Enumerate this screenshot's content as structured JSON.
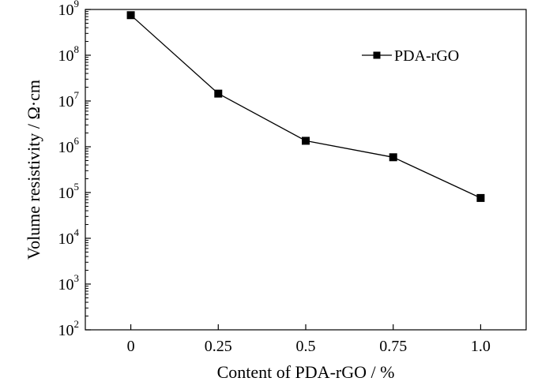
{
  "chart_data": {
    "type": "line",
    "xlabel": "Content of PDA-rGO  / %",
    "ylabel": "Volume  resistivity / Ω·cm",
    "x_tick_labels": [
      "0",
      "0.25",
      "0.5",
      "0.75",
      "1.0"
    ],
    "x_ticks": [
      0,
      0.25,
      0.5,
      0.75,
      1.0
    ],
    "xlim": [
      -0.13,
      1.13
    ],
    "y_scale": "log",
    "ylim": [
      100,
      1000000000
    ],
    "y_ticks": [
      {
        "base": "10",
        "exp": "2",
        "value": 100
      },
      {
        "base": "10",
        "exp": "3",
        "value": 1000
      },
      {
        "base": "10",
        "exp": "4",
        "value": 10000
      },
      {
        "base": "10",
        "exp": "5",
        "value": 100000
      },
      {
        "base": "10",
        "exp": "6",
        "value": 1000000
      },
      {
        "base": "10",
        "exp": "7",
        "value": 10000000
      },
      {
        "base": "10",
        "exp": "8",
        "value": 100000000
      },
      {
        "base": "10",
        "exp": "9",
        "value": 1000000000
      }
    ],
    "series": [
      {
        "name": "PDA-rGO",
        "marker": "square",
        "color": "#000000",
        "x": [
          0,
          0.25,
          0.5,
          0.75,
          1.0
        ],
        "y": [
          750000000,
          14500000,
          1350000,
          590000,
          76000
        ]
      }
    ],
    "legend_position": "top-right",
    "grid": false
  }
}
